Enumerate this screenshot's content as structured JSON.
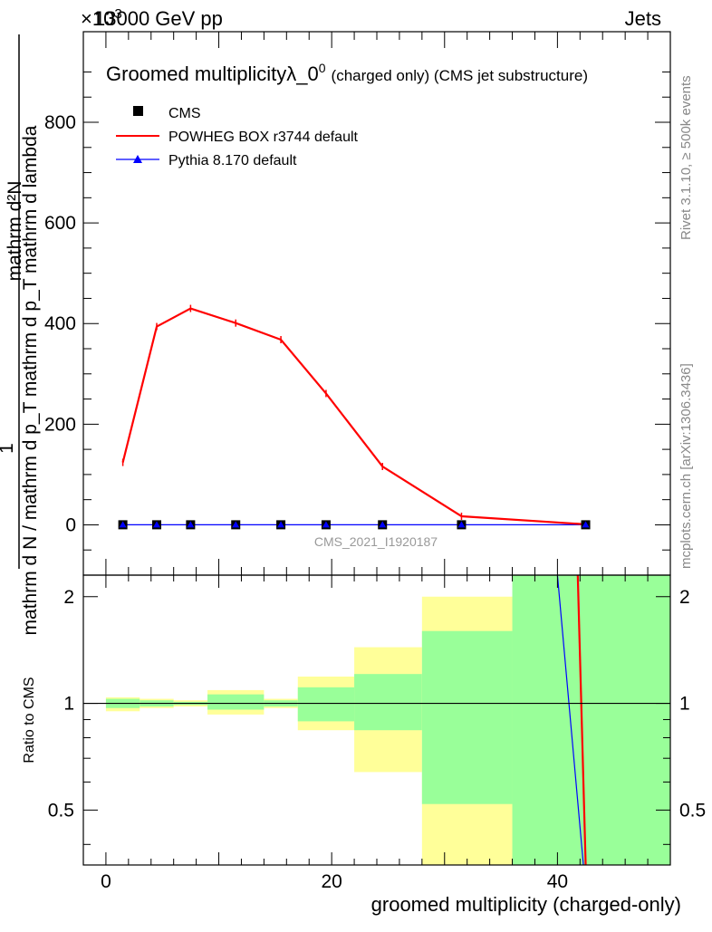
{
  "header": {
    "left": "13000 GeV pp",
    "right": "Jets",
    "exponent": "×10",
    "exponent_power": "3"
  },
  "plot": {
    "title_main": "Groomed multiplicityλ_0",
    "title_sup": "0",
    "title_rest": "(charged only) (CMS jet substructure)",
    "watermark": "CMS_2021_I1920187",
    "ylabel_numerator": "mathrm d²N",
    "ylabel_denominator": "mathrm d N / mathrm d p_T mathrm d p_T mathrm d lambda",
    "ylabel_one": "1",
    "ratio_ylabel": "Ratio to CMS",
    "xlabel": "groomed multiplicity (charged-only)"
  },
  "side_labels": {
    "rivet": "Rivet 3.1.10, ≥ 500k events",
    "mcplots": "mcplots.cern.ch [arXiv:1306.3436]"
  },
  "legend": [
    {
      "label": "CMS",
      "color": "#000000",
      "marker": "square"
    },
    {
      "label": "POWHEG BOX r3744 default",
      "color": "#ff0000",
      "marker": "line"
    },
    {
      "label": "Pythia 8.170 default",
      "color": "#0000ff",
      "marker": "triangle"
    }
  ],
  "chart_data": {
    "type": "line",
    "xlim": [
      -2,
      50
    ],
    "ylim": [
      -100,
      980
    ],
    "y_scale_note": "×10^3",
    "x_ticks": [
      "0",
      "20",
      "40"
    ],
    "y_ticks": [
      "0",
      "200",
      "400",
      "600",
      "800"
    ],
    "ratio_ylim": [
      0.35,
      2.3
    ],
    "ratio_ticks": [
      "0.5",
      "1",
      "2"
    ],
    "bins": [
      [
        0,
        3
      ],
      [
        3,
        6
      ],
      [
        6,
        9
      ],
      [
        9,
        14
      ],
      [
        14,
        17
      ],
      [
        17,
        22
      ],
      [
        22,
        28
      ],
      [
        28,
        36
      ],
      [
        36,
        50
      ]
    ],
    "x": [
      1.5,
      4.5,
      7.5,
      11.5,
      15.5,
      19.5,
      24.5,
      31.5,
      42.5
    ],
    "series": [
      {
        "name": "CMS",
        "color": "#000000",
        "values": [
          0.1,
          0.1,
          0.1,
          0.1,
          0.1,
          0.1,
          0.1,
          0.1,
          0.1
        ]
      },
      {
        "name": "POWHEG BOX r3744 default",
        "color": "#ff0000",
        "values": [
          124,
          394,
          430,
          401,
          368,
          261,
          116,
          17,
          1
        ]
      },
      {
        "name": "Pythia 8.170 default",
        "color": "#0000ff",
        "values": [
          0.1,
          0.1,
          0.1,
          0.1,
          0.1,
          0.1,
          0.1,
          0.1,
          0.1
        ]
      }
    ],
    "ratio_bands": {
      "green": [
        [
          0.97,
          1.03
        ],
        [
          0.98,
          1.02
        ],
        [
          0.99,
          1.01
        ],
        [
          0.96,
          1.06
        ],
        [
          0.98,
          1.02
        ],
        [
          0.89,
          1.11
        ],
        [
          0.84,
          1.21
        ],
        [
          0.52,
          1.6
        ],
        [
          0.3,
          2.5
        ]
      ],
      "yellow": [
        [
          0.95,
          1.04
        ],
        [
          0.97,
          1.03
        ],
        [
          0.98,
          1.02
        ],
        [
          0.93,
          1.09
        ],
        [
          0.97,
          1.03
        ],
        [
          0.84,
          1.19
        ],
        [
          0.64,
          1.44
        ],
        [
          0.3,
          2.0
        ],
        [
          0.3,
          2.5
        ]
      ]
    },
    "ratio_lines": [
      {
        "name": "POWHEG BOX r3744 default",
        "color": "#ff0000",
        "points": [
          [
            41.8,
            2.5
          ],
          [
            42.5,
            0.3
          ]
        ]
      },
      {
        "name": "Pythia 8.170 default",
        "color": "#0000ff",
        "points": [
          [
            40.0,
            2.5
          ],
          [
            42.3,
            0.3
          ]
        ]
      }
    ]
  }
}
